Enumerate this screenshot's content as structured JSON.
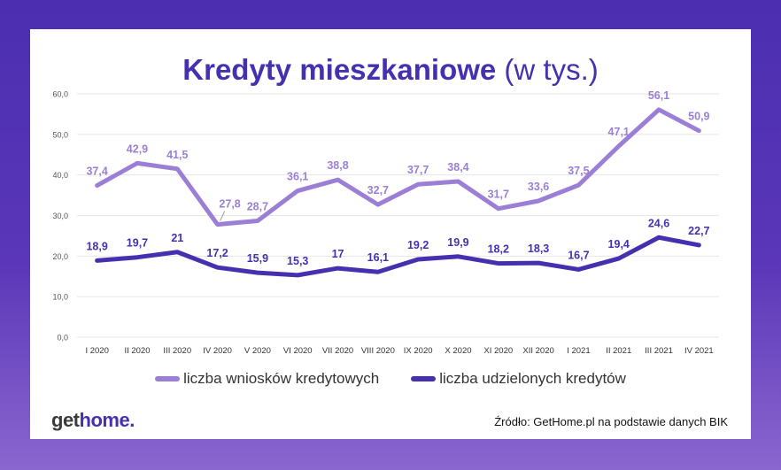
{
  "title": {
    "main": "Kredyty mieszkaniowe",
    "sub": " (w tys.)"
  },
  "colors": {
    "series1": "#9b7fd6",
    "series2": "#4630b0",
    "grid": "#e6e6e6",
    "tick": "#555555"
  },
  "logo": {
    "part1": "get",
    "part2": "home",
    "dot": "."
  },
  "source": "Źródło: GetHome.pl na podstawie danych BIK",
  "chart_data": {
    "type": "line",
    "title": "Kredyty mieszkaniowe (w tys.)",
    "categories": [
      "I 2020",
      "II 2020",
      "III 2020",
      "IV 2020",
      "V 2020",
      "VI 2020",
      "VII 2020",
      "VIII 2020",
      "IX 2020",
      "X 2020",
      "XI 2020",
      "XII 2020",
      "I 2021",
      "II 2021",
      "III 2021",
      "IV 2021"
    ],
    "y_ticks": [
      "0,0",
      "10,0",
      "20,0",
      "30,0",
      "40,0",
      "50,0",
      "60,0"
    ],
    "ylim": [
      0,
      60
    ],
    "grid": true,
    "legend_position": "bottom",
    "series": [
      {
        "name": "liczba wniosków kredytowych",
        "values": [
          37.4,
          42.9,
          41.5,
          27.8,
          28.7,
          36.1,
          38.8,
          32.7,
          37.7,
          38.4,
          31.7,
          33.6,
          37.5,
          47.1,
          56.1,
          50.9
        ],
        "labels": [
          "37,4",
          "42,9",
          "41,5",
          "27,8",
          "28,7",
          "36,1",
          "38,8",
          "32,7",
          "37,7",
          "38,4",
          "31,7",
          "33,6",
          "37,5",
          "47,1",
          "56,1",
          "50,9"
        ]
      },
      {
        "name": "liczba udzielonych kredytów",
        "values": [
          18.9,
          19.7,
          21,
          17.2,
          15.9,
          15.3,
          17,
          16.1,
          19.2,
          19.9,
          18.2,
          18.3,
          16.7,
          19.4,
          24.6,
          22.7
        ],
        "labels": [
          "18,9",
          "19,7",
          "21",
          "17,2",
          "15,9",
          "15,3",
          "17",
          "16,1",
          "19,2",
          "19,9",
          "18,2",
          "18,3",
          "16,7",
          "19,4",
          "24,6",
          "22,7"
        ]
      }
    ]
  }
}
